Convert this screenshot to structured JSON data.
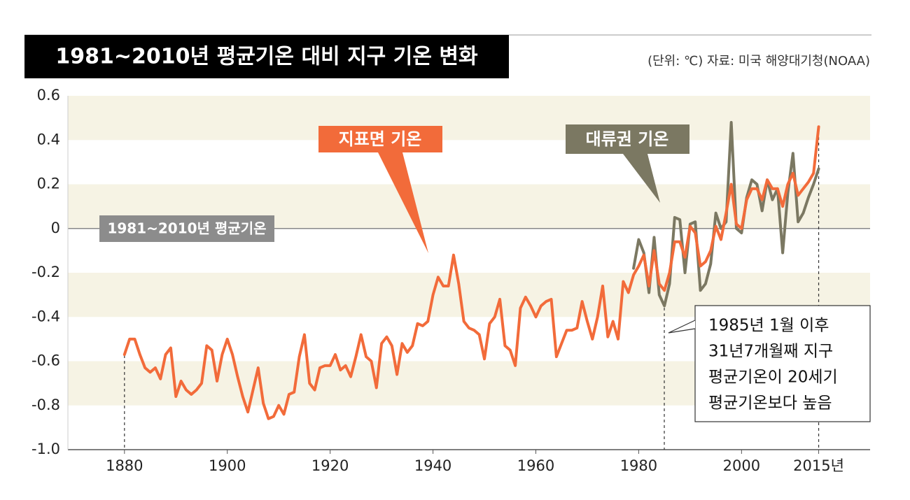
{
  "chart_data": {
    "type": "line",
    "title": "1981~2010년 평균기온 대비 지구 기온 변화",
    "subtitle": "(단위: ℃) 자료: 미국 해양대기청(NOAA)",
    "x": [
      1880,
      1881,
      1882,
      1883,
      1884,
      1885,
      1886,
      1887,
      1888,
      1889,
      1890,
      1891,
      1892,
      1893,
      1894,
      1895,
      1896,
      1897,
      1898,
      1899,
      1900,
      1901,
      1902,
      1903,
      1904,
      1905,
      1906,
      1907,
      1908,
      1909,
      1910,
      1911,
      1912,
      1913,
      1914,
      1915,
      1916,
      1917,
      1918,
      1919,
      1920,
      1921,
      1922,
      1923,
      1924,
      1925,
      1926,
      1927,
      1928,
      1929,
      1930,
      1931,
      1932,
      1933,
      1934,
      1935,
      1936,
      1937,
      1938,
      1939,
      1940,
      1941,
      1942,
      1943,
      1944,
      1945,
      1946,
      1947,
      1948,
      1949,
      1950,
      1951,
      1952,
      1953,
      1954,
      1955,
      1956,
      1957,
      1958,
      1959,
      1960,
      1961,
      1962,
      1963,
      1964,
      1965,
      1966,
      1967,
      1968,
      1969,
      1970,
      1971,
      1972,
      1973,
      1974,
      1975,
      1976,
      1977,
      1978,
      1979,
      1980,
      1981,
      1982,
      1983,
      1984,
      1985,
      1986,
      1987,
      1988,
      1989,
      1990,
      1991,
      1992,
      1993,
      1994,
      1995,
      1996,
      1997,
      1998,
      1999,
      2000,
      2001,
      2002,
      2003,
      2004,
      2005,
      2006,
      2007,
      2008,
      2009,
      2010,
      2011,
      2012,
      2013,
      2014,
      2015
    ],
    "series": [
      {
        "name": "대류권 기온",
        "color": "#7b7862",
        "values": [
          null,
          null,
          null,
          null,
          null,
          null,
          null,
          null,
          null,
          null,
          null,
          null,
          null,
          null,
          null,
          null,
          null,
          null,
          null,
          null,
          null,
          null,
          null,
          null,
          null,
          null,
          null,
          null,
          null,
          null,
          null,
          null,
          null,
          null,
          null,
          null,
          null,
          null,
          null,
          null,
          null,
          null,
          null,
          null,
          null,
          null,
          null,
          null,
          null,
          null,
          null,
          null,
          null,
          null,
          null,
          null,
          null,
          null,
          null,
          null,
          null,
          null,
          null,
          null,
          null,
          null,
          null,
          null,
          null,
          null,
          null,
          null,
          null,
          null,
          null,
          null,
          null,
          null,
          null,
          null,
          null,
          null,
          null,
          null,
          null,
          null,
          null,
          null,
          null,
          null,
          null,
          null,
          null,
          null,
          null,
          null,
          null,
          null,
          null,
          -0.18,
          -0.05,
          -0.11,
          -0.29,
          -0.04,
          -0.3,
          -0.35,
          -0.25,
          0.05,
          0.04,
          -0.2,
          0.02,
          0.03,
          -0.28,
          -0.25,
          -0.16,
          0.07,
          0.0,
          0.03,
          0.48,
          0.0,
          -0.02,
          0.14,
          0.22,
          0.2,
          0.08,
          0.22,
          0.13,
          0.18,
          -0.11,
          0.16,
          0.34,
          0.03,
          0.07,
          0.14,
          0.2,
          0.27
        ]
      },
      {
        "name": "지표면 기온",
        "color": "#f26b3a",
        "values": [
          -0.57,
          -0.5,
          -0.5,
          -0.57,
          -0.63,
          -0.65,
          -0.63,
          -0.68,
          -0.57,
          -0.54,
          -0.76,
          -0.69,
          -0.73,
          -0.75,
          -0.73,
          -0.7,
          -0.53,
          -0.55,
          -0.69,
          -0.57,
          -0.5,
          -0.57,
          -0.67,
          -0.76,
          -0.83,
          -0.73,
          -0.63,
          -0.79,
          -0.86,
          -0.85,
          -0.8,
          -0.84,
          -0.75,
          -0.74,
          -0.58,
          -0.48,
          -0.7,
          -0.73,
          -0.63,
          -0.62,
          -0.62,
          -0.57,
          -0.64,
          -0.62,
          -0.67,
          -0.58,
          -0.48,
          -0.58,
          -0.6,
          -0.72,
          -0.52,
          -0.49,
          -0.53,
          -0.66,
          -0.52,
          -0.56,
          -0.53,
          -0.43,
          -0.44,
          -0.42,
          -0.3,
          -0.22,
          -0.26,
          -0.26,
          -0.12,
          -0.25,
          -0.42,
          -0.45,
          -0.46,
          -0.48,
          -0.59,
          -0.43,
          -0.4,
          -0.32,
          -0.53,
          -0.55,
          -0.62,
          -0.36,
          -0.31,
          -0.35,
          -0.4,
          -0.35,
          -0.33,
          -0.32,
          -0.58,
          -0.52,
          -0.46,
          -0.46,
          -0.45,
          -0.33,
          -0.42,
          -0.5,
          -0.4,
          -0.26,
          -0.49,
          -0.42,
          -0.5,
          -0.24,
          -0.29,
          -0.21,
          -0.17,
          -0.12,
          -0.26,
          -0.1,
          -0.25,
          -0.28,
          -0.2,
          -0.06,
          -0.06,
          -0.13,
          0.01,
          -0.02,
          -0.17,
          -0.15,
          -0.1,
          0.01,
          -0.05,
          0.07,
          0.2,
          0.02,
          0.0,
          0.13,
          0.18,
          0.18,
          0.13,
          0.22,
          0.18,
          0.18,
          0.1,
          0.2,
          0.25,
          0.15,
          0.18,
          0.21,
          0.25,
          0.46
        ]
      }
    ],
    "xlim": [
      1869,
      2025
    ],
    "xticks": [
      1880,
      1900,
      1920,
      1940,
      1960,
      1980,
      2000,
      {
        "value": 2015,
        "label": "2015년"
      }
    ],
    "ylim": [
      -1,
      0.6
    ],
    "yticks": [
      {
        "value": -1,
        "label": "-1.0"
      },
      -0.8,
      -0.6,
      -0.4,
      -0.2,
      0,
      0.2,
      0.4,
      0.6
    ],
    "grid": "banded",
    "band_color": "#f6f3e4",
    "zero_line": true,
    "annotations": [
      {
        "text": "1981~2010년 평균기온"
      },
      {
        "lines": [
          "1985년 1월 이후",
          "31년7개월째 지구",
          "평균기온이 20세기",
          "평균기온보다 높음"
        ]
      }
    ]
  }
}
